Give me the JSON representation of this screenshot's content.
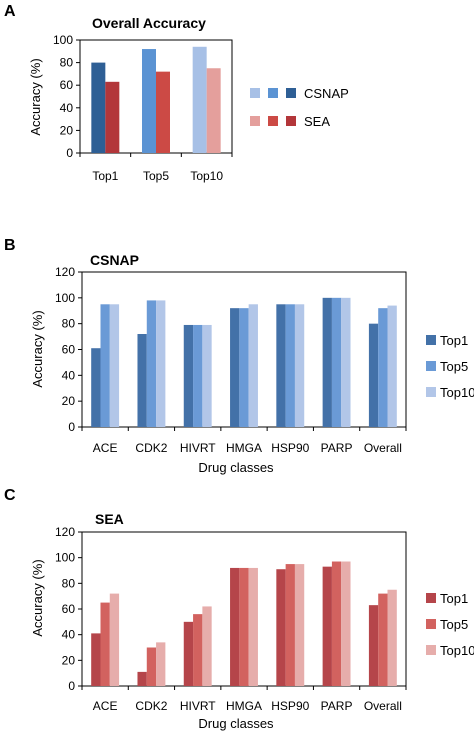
{
  "panels": [
    {
      "letter": "A",
      "chart_data": {
        "type": "bar",
        "title": "Overall Accuracy",
        "xlabel": "",
        "ylabel": "Accuracy (%)",
        "ylim": [
          0,
          100
        ],
        "yticks": [
          0,
          20,
          40,
          60,
          80,
          100
        ],
        "categories": [
          "Top1",
          "Top5",
          "Top10"
        ],
        "series": [
          {
            "name": "CSNAP",
            "values": [
              80,
              92,
              94
            ],
            "colors": [
              "#2e5f95",
              "#5b93d3",
              "#a7c0e6"
            ]
          },
          {
            "name": "SEA",
            "values": [
              63,
              72,
              75
            ],
            "colors": [
              "#b3363a",
              "#cc4a45",
              "#e49f9c"
            ]
          }
        ],
        "legend": "right"
      }
    },
    {
      "letter": "B",
      "chart_data": {
        "type": "bar",
        "title": "CSNAP",
        "xlabel": "Drug classes",
        "ylabel": "Accuracy (%)",
        "ylim": [
          0,
          120
        ],
        "yticks": [
          0,
          20,
          40,
          60,
          80,
          100,
          120
        ],
        "categories": [
          "ACE",
          "CDK2",
          "HIVRT",
          "HMGA",
          "HSP90",
          "PARP",
          "Overall"
        ],
        "series": [
          {
            "name": "Top1",
            "values": [
              61,
              72,
              79,
              92,
              95,
              100,
              80
            ],
            "color": "#4371a8"
          },
          {
            "name": "Top5",
            "values": [
              95,
              98,
              79,
              92,
              95,
              100,
              92
            ],
            "color": "#6a9ad6"
          },
          {
            "name": "Top10",
            "values": [
              95,
              98,
              79,
              95,
              95,
              100,
              94
            ],
            "color": "#b2c6e8"
          }
        ],
        "legend": "right"
      }
    },
    {
      "letter": "C",
      "chart_data": {
        "type": "bar",
        "title": "SEA",
        "xlabel": "Drug classes",
        "ylabel": "Accuracy (%)",
        "ylim": [
          0,
          120
        ],
        "yticks": [
          0,
          20,
          40,
          60,
          80,
          100,
          120
        ],
        "categories": [
          "ACE",
          "CDK2",
          "HIVRT",
          "HMGA",
          "HSP90",
          "PARP",
          "Overall"
        ],
        "series": [
          {
            "name": "Top1",
            "values": [
              41,
              11,
              50,
              92,
              91,
              93,
              63
            ],
            "color": "#b5454a"
          },
          {
            "name": "Top5",
            "values": [
              65,
              30,
              56,
              92,
              95,
              97,
              72
            ],
            "color": "#d2625f"
          },
          {
            "name": "Top10",
            "values": [
              72,
              34,
              62,
              92,
              95,
              97,
              75
            ],
            "color": "#e6adab"
          }
        ],
        "legend": "right"
      }
    }
  ]
}
